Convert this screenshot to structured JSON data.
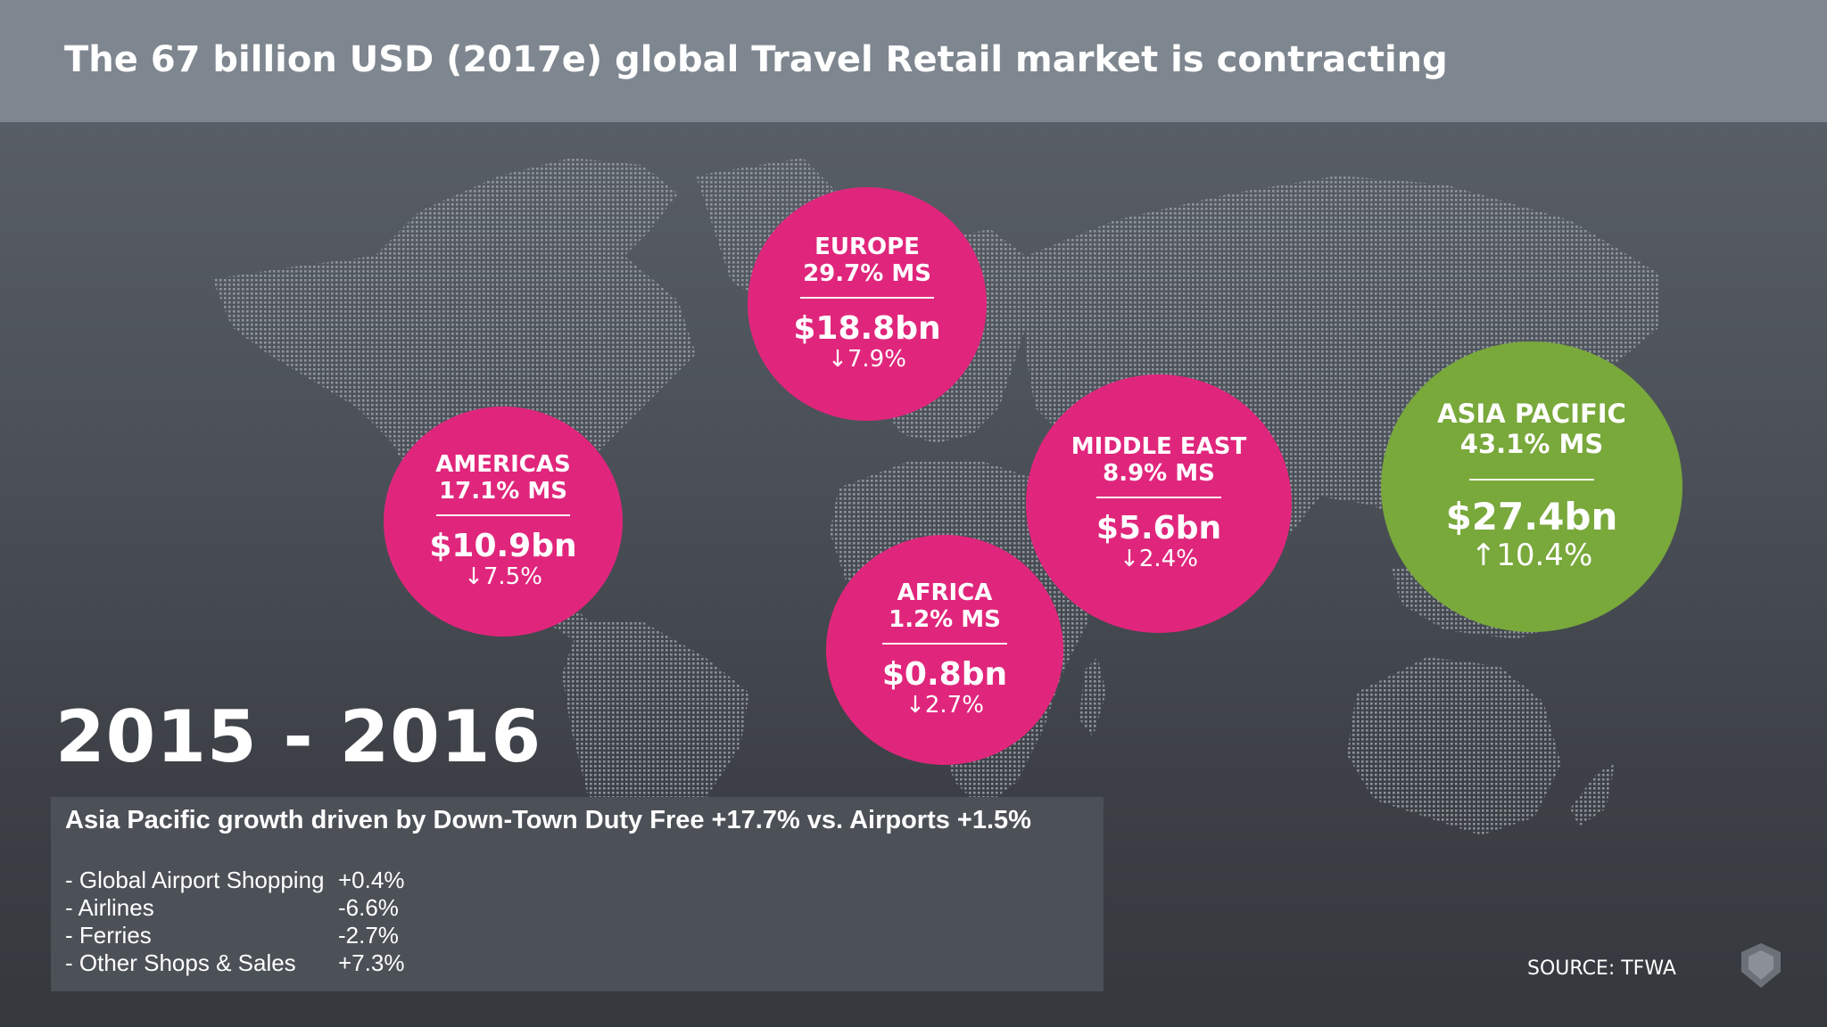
{
  "header": {
    "title": "The 67 billion USD (2017e) global Travel Retail market is contracting"
  },
  "colors": {
    "decline": "#e0267c",
    "growth": "#79a83b",
    "header_bg": "#7e868f",
    "map_dots": "#8d9299"
  },
  "regions": {
    "europe": {
      "name": "EUROPE",
      "share": "29.7% MS",
      "rule": "___________",
      "value": "$18.8bn",
      "change": "↓7.9%"
    },
    "americas": {
      "name": "AMERICAS",
      "share": "17.1% MS",
      "rule": "___________",
      "value": "$10.9bn",
      "change": "↓7.5%"
    },
    "middle_east": {
      "name": "MIDDLE EAST",
      "share": "8.9% MS",
      "rule": "___________",
      "value": "$5.6bn",
      "change": "↓2.4%"
    },
    "africa": {
      "name": "AFRICA",
      "share": "1.2% MS",
      "rule": "___________",
      "value": "$0.8bn",
      "change": "↓2.7%"
    },
    "asia_pacific": {
      "name": "ASIA PACIFIC",
      "share": "43.1% MS",
      "rule": "___________",
      "value": "$27.4bn",
      "change": "↑10.4%"
    }
  },
  "period": "2015 - 2016",
  "info": {
    "heading": "Asia Pacific growth driven by Down-Town Duty Free +17.7% vs. Airports +1.5%",
    "items": [
      {
        "label": "- Global Airport Shopping",
        "value": "+0.4%"
      },
      {
        "label": "- Airlines",
        "value": "-6.6%"
      },
      {
        "label": "- Ferries",
        "value": "-2.7%"
      },
      {
        "label": "- Other Shops & Sales",
        "value": "+7.3%"
      }
    ]
  },
  "source": "SOURCE: TFWA",
  "logo_icon": "shield-logo-icon"
}
